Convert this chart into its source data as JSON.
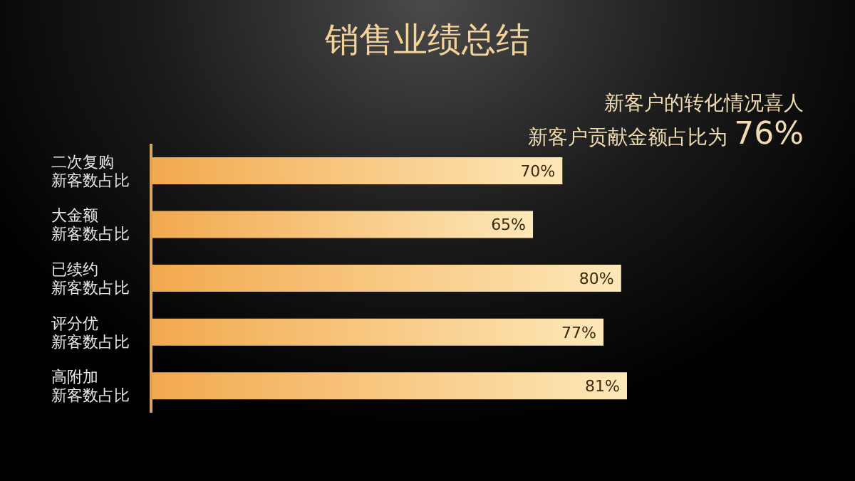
{
  "chart_data": {
    "type": "bar",
    "orientation": "horizontal",
    "title": "销售业绩总结",
    "annotations": [
      "新客户的转化情况喜人",
      "新客户贡献金额占比为 76%"
    ],
    "categories": [
      "二次复购新客数占比",
      "大金额新客数占比",
      "已续约新客数占比",
      "评分优新客数占比",
      "高附加新客数占比"
    ],
    "values": [
      70,
      65,
      80,
      77,
      81
    ],
    "value_labels": [
      "70%",
      "65%",
      "80%",
      "77%",
      "81%"
    ],
    "color": "#f2a94e"
  }
}
